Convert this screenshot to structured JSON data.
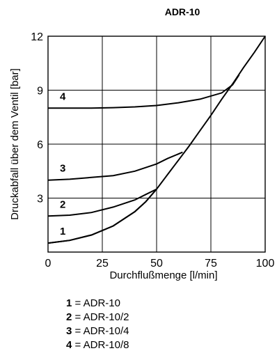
{
  "chart_data": {
    "type": "line",
    "title": "ADR-10",
    "xlabel": "Durchflußmenge [l/min]",
    "ylabel": "Druckabfall über dem Ventil [bar]",
    "xlim": [
      0,
      100
    ],
    "ylim": [
      0,
      12
    ],
    "xticks": [
      0,
      25,
      50,
      75,
      100
    ],
    "yticks": [
      3,
      6,
      9,
      12
    ],
    "grid": true,
    "common_curve": {
      "x": [
        0,
        10,
        20,
        30,
        40,
        45,
        50,
        55,
        60,
        65,
        70,
        75,
        80,
        85,
        90,
        95,
        100
      ],
      "y": [
        0.5,
        0.65,
        0.95,
        1.45,
        2.25,
        2.8,
        3.5,
        4.3,
        5.1,
        5.9,
        6.75,
        7.6,
        8.5,
        9.35,
        10.25,
        11.1,
        12.0
      ]
    },
    "series": [
      {
        "label": "1",
        "x": [
          0,
          10,
          20,
          30,
          40,
          45,
          50
        ],
        "y": [
          0.5,
          0.65,
          0.95,
          1.45,
          2.25,
          2.8,
          3.5
        ]
      },
      {
        "label": "2",
        "x": [
          0,
          10,
          20,
          30,
          40,
          45,
          50
        ],
        "y": [
          2.0,
          2.05,
          2.2,
          2.5,
          2.9,
          3.2,
          3.5
        ]
      },
      {
        "label": "3",
        "x": [
          0,
          10,
          20,
          30,
          40,
          50,
          55,
          62
        ],
        "y": [
          4.0,
          4.05,
          4.15,
          4.25,
          4.5,
          4.9,
          5.2,
          5.55
        ]
      },
      {
        "label": "4",
        "x": [
          0,
          10,
          20,
          30,
          40,
          50,
          60,
          70,
          80,
          85,
          88
        ],
        "y": [
          8.0,
          8.0,
          8.0,
          8.03,
          8.07,
          8.15,
          8.3,
          8.5,
          8.85,
          9.3,
          9.85
        ]
      }
    ]
  },
  "legend": [
    {
      "num": "1",
      "text": " = ADR-10"
    },
    {
      "num": "2",
      "text": " = ADR-10/2"
    },
    {
      "num": "3",
      "text": " = ADR-10/4"
    },
    {
      "num": "4",
      "text": " = ADR-10/8"
    }
  ]
}
